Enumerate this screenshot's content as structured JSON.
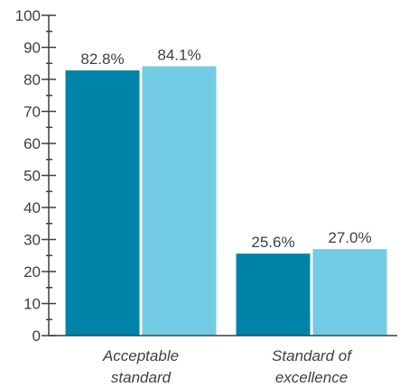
{
  "chart_data": {
    "type": "bar",
    "categories": [
      [
        "Acceptable",
        "standard"
      ],
      [
        "Standard of",
        "excellence"
      ]
    ],
    "series": [
      {
        "values": [
          82.8,
          25.6
        ],
        "labels": [
          "82.8%",
          "25.6%"
        ]
      },
      {
        "values": [
          84.1,
          27.0
        ],
        "labels": [
          "84.1%",
          "27.0%"
        ]
      }
    ],
    "colors": [
      "#0083A9",
      "#72CCE3"
    ],
    "ylim": [
      0,
      100
    ],
    "yticks": [
      "0",
      "10",
      "20",
      "30",
      "40",
      "50",
      "60",
      "70",
      "80",
      "90",
      "100"
    ],
    "grid": false
  }
}
